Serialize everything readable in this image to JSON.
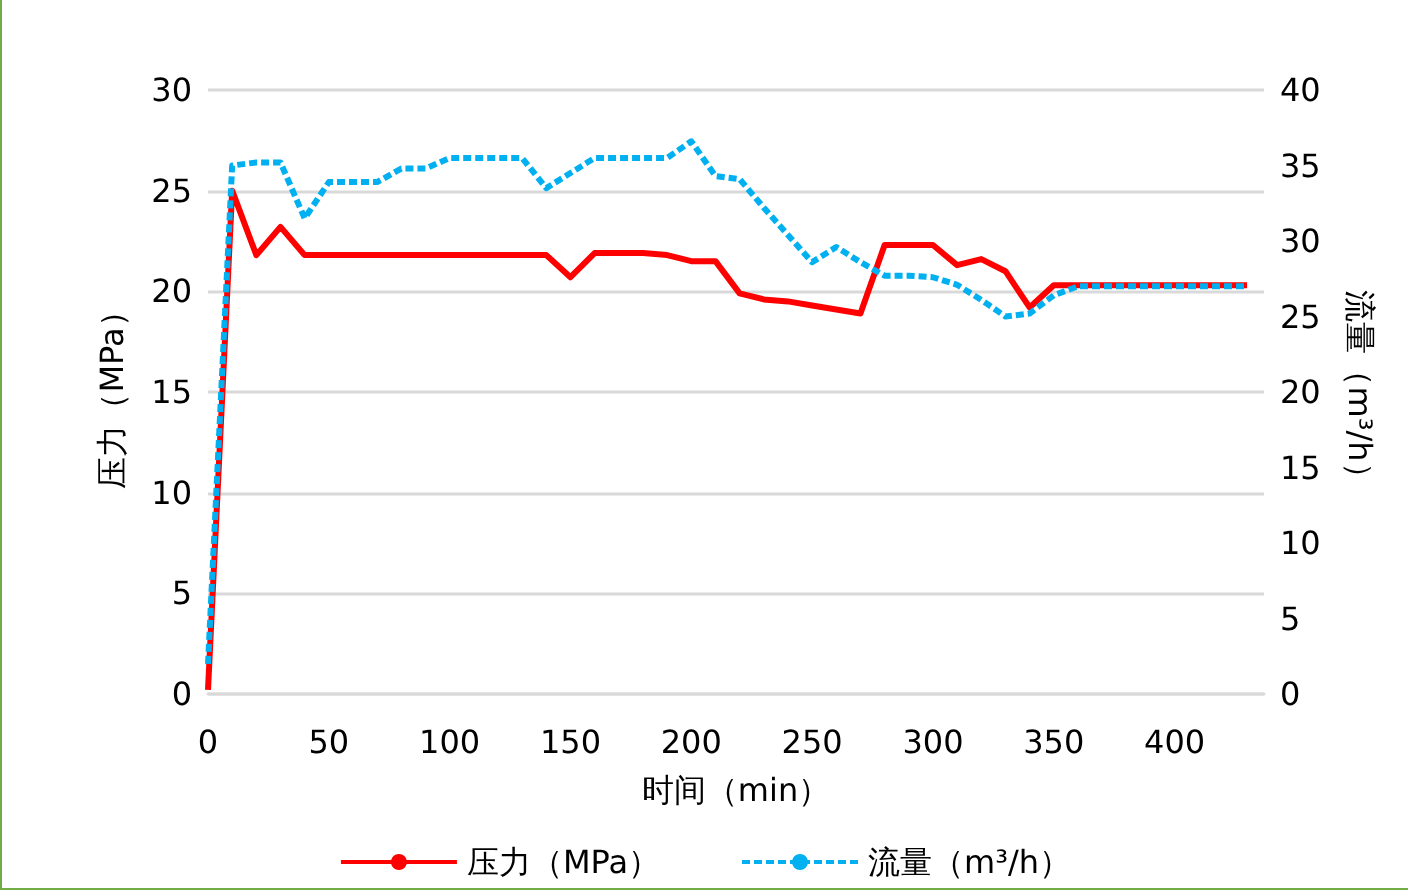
{
  "chart_data": {
    "type": "line",
    "xlabel": "时间（min）",
    "ylabel": "压力（MPa）",
    "y2label": "流量（m³/h）",
    "x": [
      0,
      10,
      20,
      30,
      40,
      50,
      60,
      70,
      80,
      90,
      100,
      110,
      120,
      130,
      140,
      150,
      160,
      170,
      180,
      190,
      200,
      210,
      220,
      230,
      240,
      250,
      260,
      270,
      280,
      290,
      300,
      310,
      320,
      330,
      340,
      350,
      360,
      370,
      380,
      390,
      400,
      410,
      420,
      430
    ],
    "series": [
      {
        "name": "压力（MPa）",
        "color": "#ff0000",
        "line_style": "solid",
        "values": [
          0.2,
          25,
          21.8,
          23.2,
          21.8,
          21.8,
          21.8,
          21.8,
          21.8,
          21.8,
          21.8,
          21.8,
          21.8,
          21.8,
          21.8,
          20.7,
          21.9,
          21.9,
          21.9,
          21.8,
          21.5,
          21.5,
          19.9,
          19.6,
          19.5,
          19.3,
          19.1,
          18.9,
          22.3,
          22.3,
          22.3,
          21.3,
          21.6,
          21.0,
          19.2,
          20.3,
          20.3,
          20.3,
          20.3,
          20.3,
          20.3,
          20.3,
          20.3,
          20.3
        ]
      },
      {
        "name": "流量（m³/h）",
        "color": "#00b0f0",
        "line_style": "dashed",
        "axis": "y2",
        "values": [
          2,
          35,
          35.2,
          35.2,
          31.5,
          33.9,
          33.9,
          33.9,
          34.8,
          34.8,
          35.5,
          35.5,
          35.5,
          35.5,
          33.5,
          34.5,
          35.5,
          35.5,
          35.5,
          35.5,
          36.6,
          34.3,
          34.1,
          32.2,
          30.4,
          28.6,
          29.6,
          28.6,
          27.7,
          27.7,
          27.6,
          27.1,
          26.1,
          25.0,
          25.2,
          26.4,
          27.0,
          27.0,
          27.0,
          27.0,
          27.0,
          27.0,
          27.0,
          27.0
        ]
      }
    ],
    "xlim": [
      0,
      437
    ],
    "xticks": [
      0,
      50,
      100,
      150,
      200,
      250,
      300,
      350,
      400
    ],
    "ylim": [
      0,
      30
    ],
    "yticks": [
      0,
      5,
      10,
      15,
      20,
      25,
      30
    ],
    "y2lim": [
      0,
      40
    ],
    "y2ticks": [
      0,
      5,
      10,
      15,
      20,
      25,
      30,
      35,
      40
    ],
    "grid": "y",
    "legend": "bottom",
    "marker": "none"
  }
}
